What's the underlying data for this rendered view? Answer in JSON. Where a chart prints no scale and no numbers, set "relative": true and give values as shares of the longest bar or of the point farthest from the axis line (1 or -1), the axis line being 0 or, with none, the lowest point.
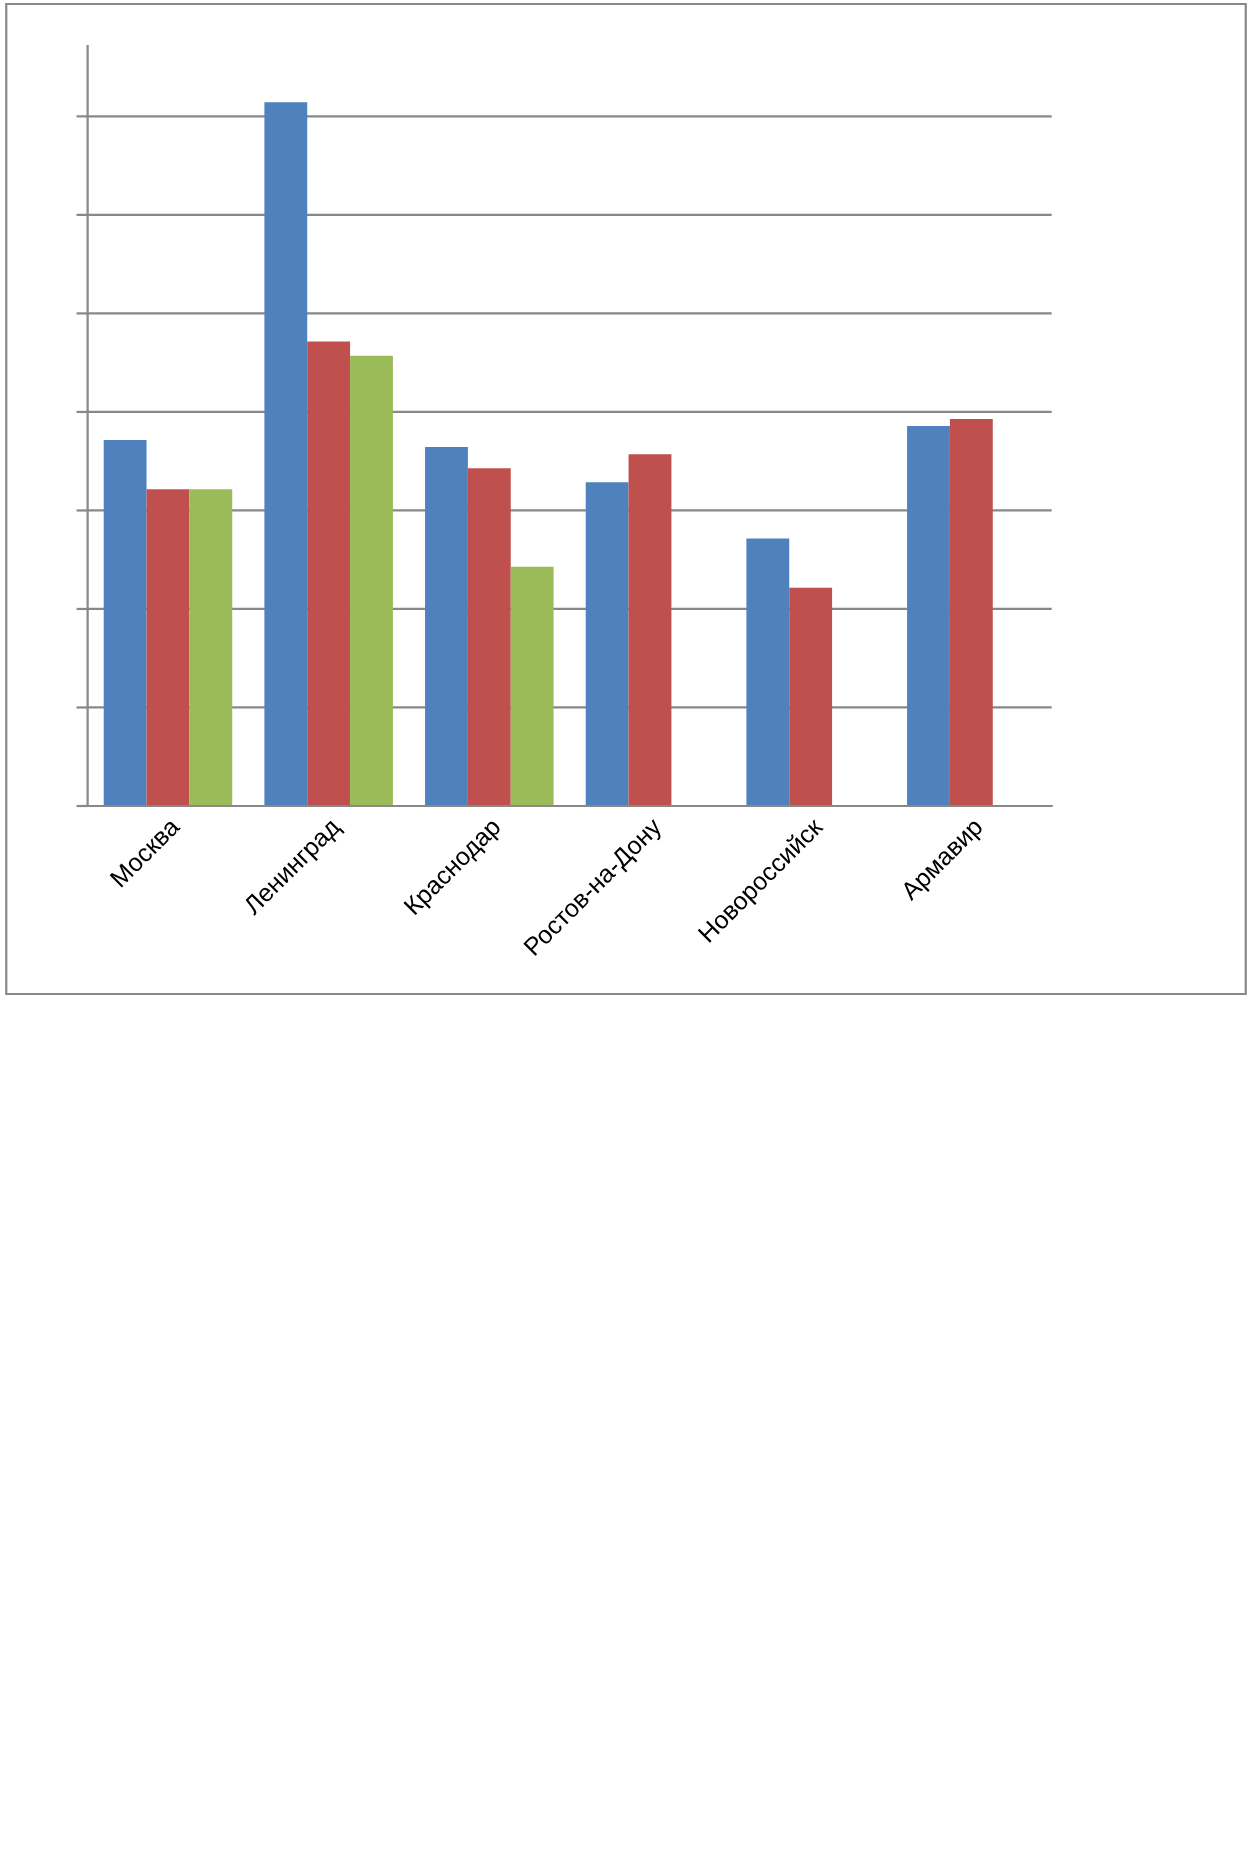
{
  "chart_data": {
    "type": "bar",
    "relative": true,
    "grid": "y",
    "categories": [
      "Москва",
      "Ленинград",
      "Краснодар",
      "Ростов-на-Дону",
      "Новороссийск",
      "Армавир"
    ],
    "series": [
      {
        "color": "#4f81bd",
        "values": [
          0.52,
          1,
          0.51,
          0.46,
          0.38,
          0.54
        ]
      },
      {
        "color": "#c0504d",
        "values": [
          0.45,
          0.66,
          0.48,
          0.5,
          0.31,
          0.55
        ]
      },
      {
        "color": "#9bbb59",
        "values": [
          0.45,
          0.64,
          0.34,
          null,
          null,
          null
        ]
      }
    ]
  }
}
